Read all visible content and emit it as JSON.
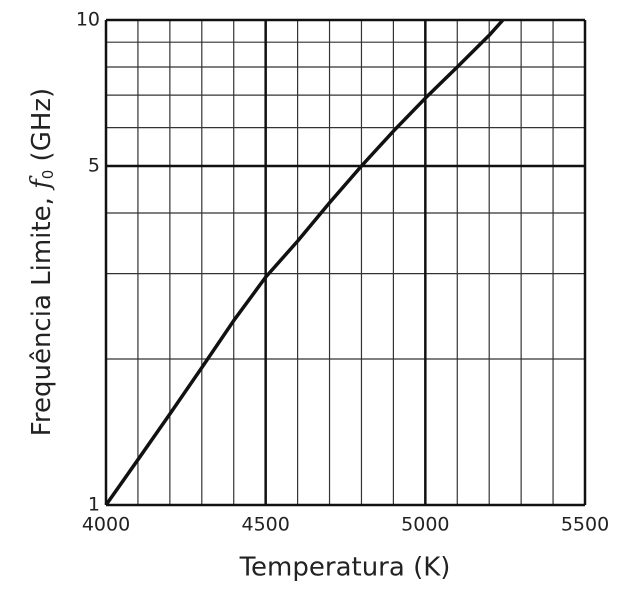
{
  "chart_data": {
    "type": "line",
    "x_label": "Temperatura (K)",
    "y_label_parts": [
      "Frequência Limite, ",
      "f",
      "0",
      " (GHz)"
    ],
    "x": [
      4000,
      4100,
      4200,
      4300,
      4400,
      4500,
      4600,
      4700,
      4800,
      4900,
      5000,
      5100,
      5200,
      5243
    ],
    "series": [
      {
        "color": "#111111",
        "values": [
          1,
          1.24,
          1.54,
          1.92,
          2.4,
          2.95,
          3.5,
          4.2,
          5.0,
          5.9,
          6.9,
          8.0,
          9.3,
          10
        ]
      }
    ],
    "xlim": [
      4000,
      5500
    ],
    "xticks": [
      4000,
      4500,
      5000,
      5500
    ],
    "x_minor_ticks": [
      4100,
      4200,
      4300,
      4400,
      4600,
      4700,
      4800,
      4900,
      5100,
      5200,
      5300,
      5400
    ],
    "ylim": [
      1,
      10
    ],
    "yticks": [
      1,
      5,
      10
    ],
    "y_minor_ticks": [
      2,
      3,
      4,
      6,
      7,
      8,
      9
    ],
    "log_y": true,
    "grid": true
  }
}
